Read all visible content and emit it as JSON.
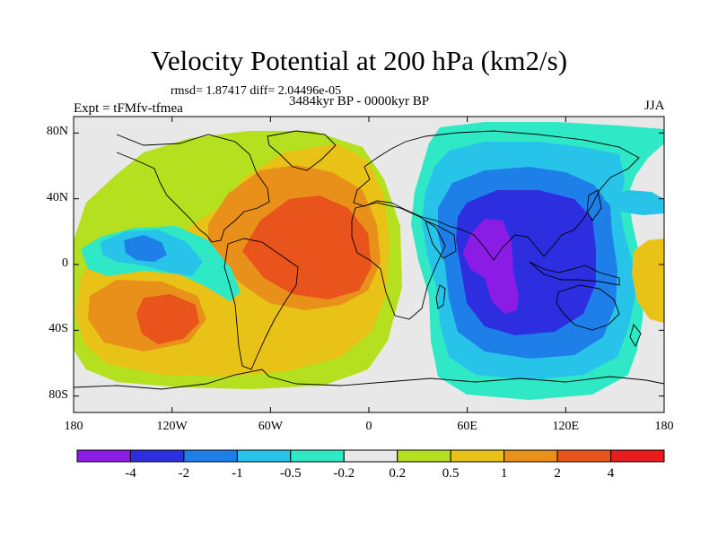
{
  "chart_data": {
    "type": "heatmap",
    "title": "Velocity Potential at 200 hPa (km2/s)",
    "stats_text": "rmsd= 1.87417  diff= 2.04496e-05",
    "experiment": "Expt = tFMfv-tfmea",
    "period": "3484kyr BP - 0000kyr BP",
    "season": "JJA",
    "x_ticks": [
      "180",
      "120W",
      "60W",
      "0",
      "60E",
      "120E",
      "180"
    ],
    "x_range": [
      -180,
      180
    ],
    "y_ticks": [
      "80N",
      "40N",
      "0",
      "40S",
      "80S"
    ],
    "y_range": [
      -90,
      90
    ],
    "colorbar": {
      "labels": [
        "-4",
        "-2",
        "-1",
        "-0.5",
        "-0.2",
        "0.2",
        "0.5",
        "1",
        "2",
        "4"
      ],
      "colors": [
        "#8a1ce6",
        "#2c2ee0",
        "#1f7fe8",
        "#27c3e8",
        "#2ee8c6",
        "#e8e8e8",
        "#b5e01f",
        "#e8c217",
        "#e8901a",
        "#e8541c",
        "#e81c1c"
      ]
    },
    "fields": [
      {
        "name": "global-fill",
        "level": "-0.2 to 0.2",
        "color": "#e8e8e8"
      },
      {
        "name": "western-hemisphere-positive",
        "level": "0.2 to 0.5",
        "color": "#b5e01f"
      },
      {
        "name": "western-hemisphere-positive",
        "level": "0.5 to 1",
        "color": "#e8c217"
      },
      {
        "name": "atlantic-positive",
        "level": "1 to 2",
        "color": "#e8901a"
      },
      {
        "name": "atlantic-positive",
        "level": "2 to 4",
        "color": "#e8541c"
      },
      {
        "name": "south-pacific-positive",
        "level": "1 to 2",
        "color": "#e8901a"
      },
      {
        "name": "south-pacific-positive",
        "level": "2 to 4",
        "color": "#e8541c"
      },
      {
        "name": "east-pacific-negative",
        "level": "-0.5 to -0.2",
        "color": "#2ee8c6"
      },
      {
        "name": "east-pacific-negative",
        "level": "-1 to -0.5",
        "color": "#27c3e8"
      },
      {
        "name": "east-pacific-negative",
        "level": "-2 to -1",
        "color": "#1f7fe8"
      },
      {
        "name": "eastern-hemisphere-negative",
        "level": "-0.5 to -0.2",
        "color": "#2ee8c6"
      },
      {
        "name": "eastern-hemisphere-negative",
        "level": "-1 to -0.5",
        "color": "#27c3e8"
      },
      {
        "name": "eastern-hemisphere-negative",
        "level": "-2 to -1",
        "color": "#1f7fe8"
      },
      {
        "name": "eastern-hemisphere-negative",
        "level": "-4 to -2",
        "color": "#2c2ee0"
      },
      {
        "name": "indian-ocean-minimum",
        "level": "< -4",
        "color": "#8a1ce6"
      },
      {
        "name": "far-east-pacific-positive",
        "level": "0.5 to 1",
        "color": "#e8c217"
      },
      {
        "name": "east-asia-minimum",
        "level": "-1 to -0.5",
        "color": "#27c3e8"
      }
    ]
  }
}
